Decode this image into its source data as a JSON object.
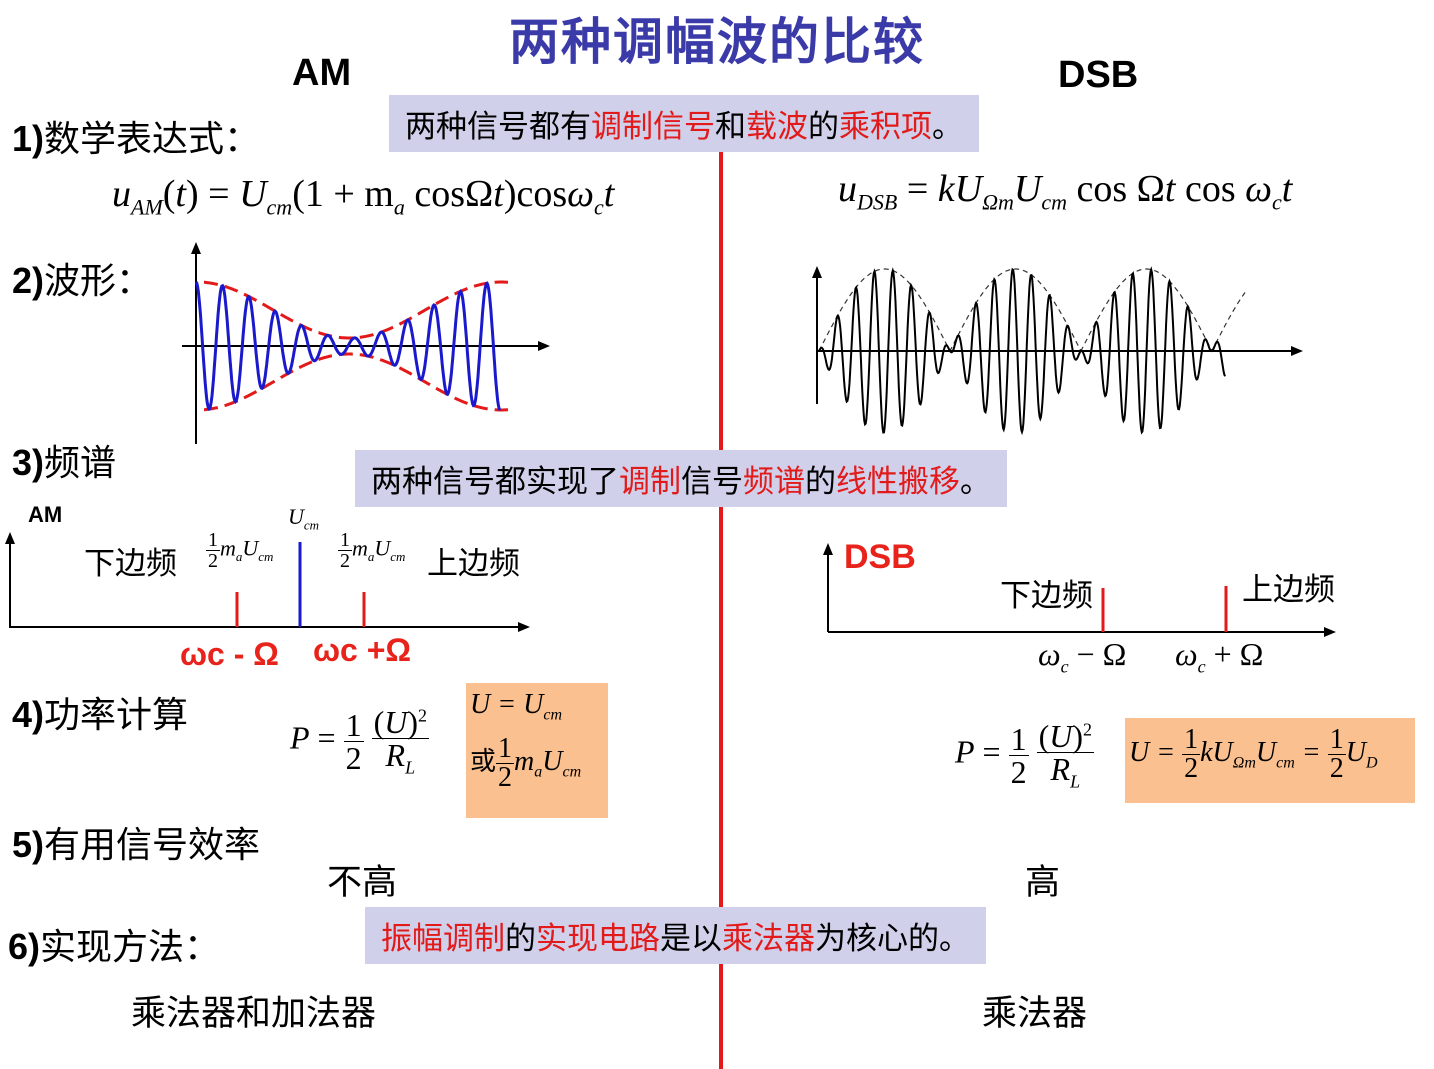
{
  "title": "两种调幅波的比较",
  "columns": {
    "am": "AM",
    "dsb": "DSB"
  },
  "items": {
    "i1_num": "1)",
    "i1_text": "数学表达式：",
    "i2_num": "2)",
    "i2_text": "波形：",
    "i3_num": "3)",
    "i3_text": "频谱",
    "i4_num": "4)",
    "i4_text": "功率计算",
    "i5_num": "5)",
    "i5_text": "有用信号效率",
    "i6_num": "6)",
    "i6_text": "实现方法："
  },
  "box1": {
    "p1": "两种信号都有",
    "r1": "调制信号",
    "p2": "和",
    "r2": "载波",
    "p3": "的",
    "r3": "乘积项",
    "p4": "。"
  },
  "box2": {
    "p1": "两种信号都实现了",
    "r1": "调制",
    "p2": "信号",
    "r2": "频谱",
    "p3": "的",
    "r3": "线性搬移",
    "p4": "。"
  },
  "box3": {
    "r1": "振幅调制",
    "p1": "的",
    "r2": "实现电路",
    "p2": "是以",
    "r3": "乘法器",
    "p3": "为核心的。"
  },
  "formulas": {
    "am_main": "u_AM(t) = U_cm(1 + m_a cosΩt)cosω_c t",
    "dsb_main": "u_DSB = kU_Ωm U_cm cos Ωt cos ω_c t"
  },
  "spectrum_am": {
    "label": "AM",
    "lower": "下边频",
    "upper": "上边频",
    "center": "U_cm",
    "side_amp": "1/2 m_a U_cm",
    "freq_low": "ωc - Ω",
    "freq_high": "ωc +Ω"
  },
  "spectrum_dsb": {
    "label": "DSB",
    "lower": "下边频",
    "upper": "上边频",
    "freq_low": "ωc − Ω",
    "freq_high": "ωc + Ω"
  },
  "power": {
    "am_or": "或",
    "dsb_formula": "U = 1/2 kU_Ωm U_cm = 1/2 U_D"
  },
  "efficiency": {
    "am": "不高",
    "dsb": "高"
  },
  "implementation": {
    "am": "乘法器和加法器",
    "dsb": "乘法器"
  },
  "colors": {
    "title": "#3a3aa8",
    "accent_red": "#e31a1a",
    "highlight_box": "#d0d0ea",
    "formula_box": "#fac08f",
    "am_wave": "#1a1acc"
  }
}
